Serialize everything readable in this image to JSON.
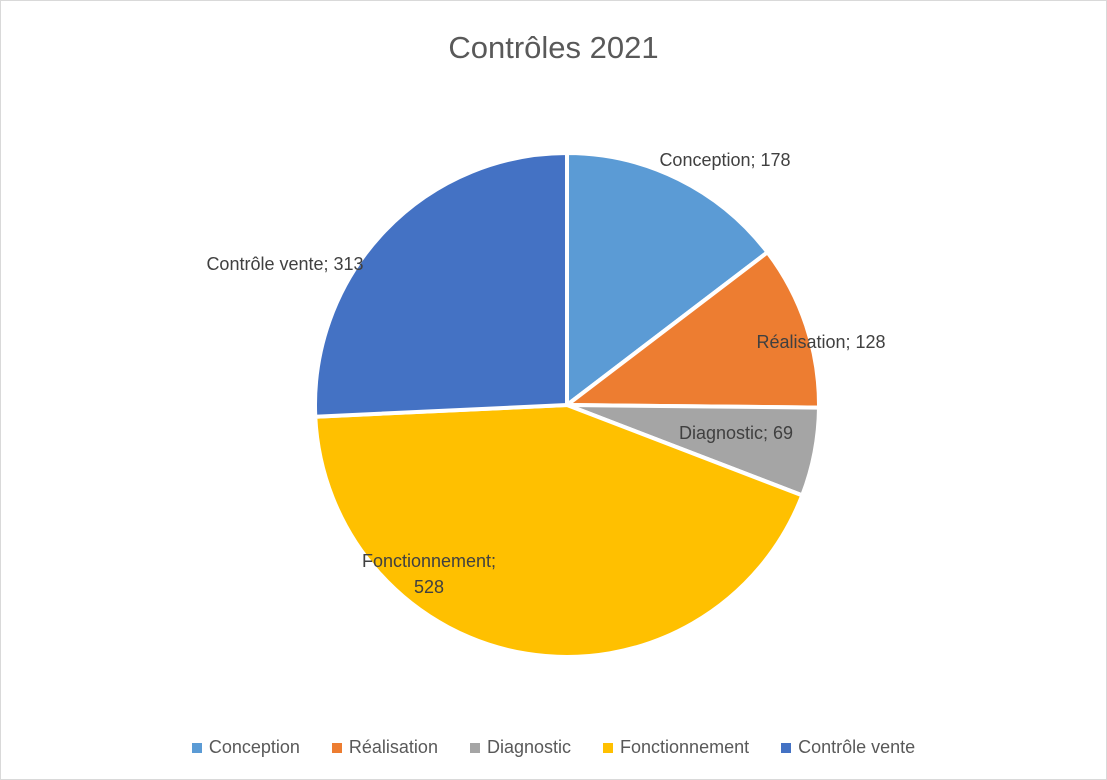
{
  "chart_data": {
    "type": "pie",
    "title": "Contrôles 2021",
    "categories": [
      "Conception",
      "Réalisation",
      "Diagnostic",
      "Fonctionnement",
      "Contrôle vente"
    ],
    "values": [
      178,
      128,
      69,
      528,
      313
    ],
    "colors": [
      "#5b9bd5",
      "#ed7d31",
      "#a5a5a5",
      "#ffc000",
      "#4472c4"
    ],
    "data_labels": [
      "Conception; 178",
      "Réalisation; 128",
      "Diagnostic; 69",
      "Fonctionnement; 528",
      "Contrôle vente; 313"
    ],
    "label_separator": "; ",
    "legend_position": "bottom"
  }
}
